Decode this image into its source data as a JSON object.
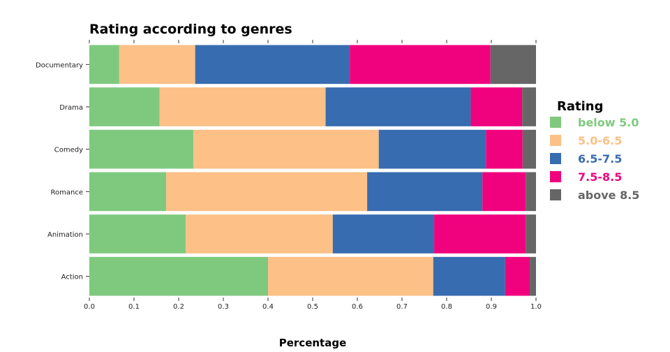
{
  "chart_data": {
    "type": "bar",
    "orientation": "horizontal",
    "stacked": true,
    "title": "Rating according to genres",
    "xlabel": "Percentage",
    "ylabel": "",
    "xlim": [
      0,
      1
    ],
    "xticks": [
      "0.0",
      "0.1",
      "0.2",
      "0.3",
      "0.4",
      "0.5",
      "0.6",
      "0.7",
      "0.8",
      "0.9",
      "1.0"
    ],
    "categories": [
      "Documentary",
      "Drama",
      "Comedy",
      "Romance",
      "Animation",
      "Action"
    ],
    "legend_title": "Rating",
    "legend_position": "right",
    "series": [
      {
        "name": "below 5.0",
        "color": "#7fc97f",
        "values": [
          0.067,
          0.157,
          0.233,
          0.172,
          0.216,
          0.4
        ]
      },
      {
        "name": "5.0-6.5",
        "color": "#fdc086",
        "values": [
          0.17,
          0.372,
          0.415,
          0.45,
          0.329,
          0.37
        ]
      },
      {
        "name": "6.5-7.5",
        "color": "#386cb0",
        "values": [
          0.346,
          0.325,
          0.24,
          0.258,
          0.227,
          0.161
        ]
      },
      {
        "name": "7.5-8.5",
        "color": "#f0027f",
        "values": [
          0.315,
          0.115,
          0.082,
          0.097,
          0.205,
          0.055
        ]
      },
      {
        "name": "above 8.5",
        "color": "#666666",
        "values": [
          0.102,
          0.031,
          0.03,
          0.023,
          0.023,
          0.014
        ]
      }
    ]
  }
}
